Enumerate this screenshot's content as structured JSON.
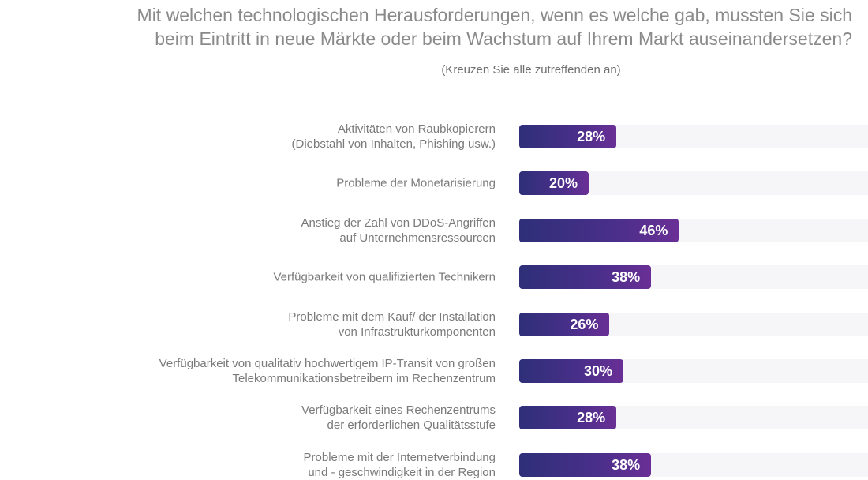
{
  "colors": {
    "title": "#8a8a8a",
    "label": "#7a7a7a",
    "track": "#f6f6f8",
    "bar_start": "#2e2f78",
    "bar_end": "#6a2f96",
    "value_text": "#ffffff"
  },
  "chart_data": {
    "type": "bar",
    "orientation": "horizontal",
    "title": [
      "Mit welchen technologischen Herausforderungen, wenn es welche gab, mussten Sie sich",
      "beim Eintritt in neue Märkte oder beim Wachstum auf Ihrem Markt auseinandersetzen?"
    ],
    "subtitle": "(Kreuzen Sie alle zutreffenden an)",
    "xlim": [
      0,
      100
    ],
    "unit": "%",
    "categories": [
      [
        "Aktivitäten von Raubkopierern",
        "(Diebstahl von Inhalten, Phishing usw.)"
      ],
      [
        "Probleme der Monetarisierung"
      ],
      [
        "Anstieg der Zahl von DDoS-Angriffen",
        "auf Unternehmensressourcen"
      ],
      [
        "Verfügbarkeit von qualifizierten Technikern"
      ],
      [
        "Probleme mit dem Kauf/ der Installation",
        "von Infrastrukturkomponenten"
      ],
      [
        "Verfügbarkeit von qualitativ hochwertigem IP-Transit von großen",
        "Telekommunikationsbetreibern im Rechenzentrum"
      ],
      [
        "Verfügbarkeit eines Rechenzentrums",
        "der erforderlichen Qualitätsstufe"
      ],
      [
        "Probleme mit der Internetverbindung",
        "und - geschwindigkeit in der Region"
      ]
    ],
    "values": [
      28,
      20,
      46,
      38,
      26,
      30,
      28,
      38
    ],
    "value_labels": [
      "28%",
      "20%",
      "46%",
      "38%",
      "26%",
      "30%",
      "28%",
      "38%"
    ]
  }
}
